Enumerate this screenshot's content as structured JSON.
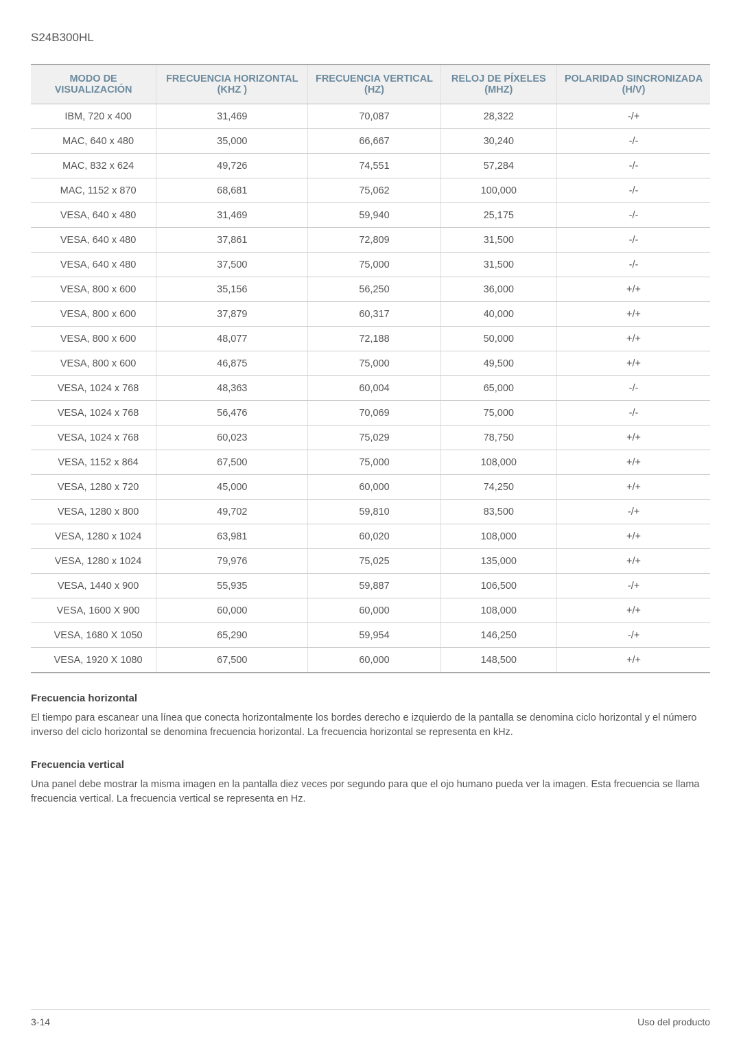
{
  "model": "S24B300HL",
  "table": {
    "headers": [
      "MODO DE VISUALIZACIÓN",
      "FRECUENCIA HORIZONTAL (KHZ )",
      "FRECUENCIA VERTICAL (HZ)",
      "RELOJ DE PÍXELES (MHZ)",
      "POLARIDAD SINCRONIZADA (H/V)"
    ],
    "header_color": "#6b8a9e",
    "header_bg": "#f0f0f0",
    "border_color": "#a8a8a8",
    "row_border_color": "#cccccc",
    "font_size": 14.5,
    "rows": [
      [
        "IBM, 720 x 400",
        "31,469",
        "70,087",
        "28,322",
        "-/+"
      ],
      [
        "MAC, 640 x 480",
        "35,000",
        "66,667",
        "30,240",
        "-/-"
      ],
      [
        "MAC, 832 x 624",
        "49,726",
        "74,551",
        "57,284",
        "-/-"
      ],
      [
        "MAC, 1152 x 870",
        "68,681",
        "75,062",
        "100,000",
        "-/-"
      ],
      [
        "VESA, 640 x 480",
        "31,469",
        "59,940",
        "25,175",
        "-/-"
      ],
      [
        "VESA, 640 x 480",
        "37,861",
        "72,809",
        "31,500",
        "-/-"
      ],
      [
        "VESA, 640 x 480",
        "37,500",
        "75,000",
        "31,500",
        "-/-"
      ],
      [
        "VESA, 800 x 600",
        "35,156",
        "56,250",
        "36,000",
        "+/+"
      ],
      [
        "VESA, 800 x 600",
        "37,879",
        "60,317",
        "40,000",
        "+/+"
      ],
      [
        "VESA, 800 x 600",
        "48,077",
        "72,188",
        "50,000",
        "+/+"
      ],
      [
        "VESA, 800 x 600",
        "46,875",
        "75,000",
        "49,500",
        "+/+"
      ],
      [
        "VESA, 1024 x 768",
        "48,363",
        "60,004",
        "65,000",
        "-/-"
      ],
      [
        "VESA, 1024 x 768",
        "56,476",
        "70,069",
        "75,000",
        "-/-"
      ],
      [
        "VESA, 1024 x 768",
        "60,023",
        "75,029",
        "78,750",
        "+/+"
      ],
      [
        "VESA, 1152 x 864",
        "67,500",
        "75,000",
        "108,000",
        "+/+"
      ],
      [
        "VESA, 1280 x 720",
        "45,000",
        "60,000",
        "74,250",
        "+/+"
      ],
      [
        "VESA, 1280 x 800",
        "49,702",
        "59,810",
        "83,500",
        "-/+"
      ],
      [
        "VESA, 1280 x 1024",
        "63,981",
        "60,020",
        "108,000",
        "+/+"
      ],
      [
        "VESA, 1280 x 1024",
        "79,976",
        "75,025",
        "135,000",
        "+/+"
      ],
      [
        "VESA, 1440 x 900",
        "55,935",
        "59,887",
        "106,500",
        "-/+"
      ],
      [
        "VESA, 1600 X 900",
        "60,000",
        "60,000",
        "108,000",
        "+/+"
      ],
      [
        "VESA, 1680 X 1050",
        "65,290",
        "59,954",
        "146,250",
        "-/+"
      ],
      [
        "VESA, 1920 X 1080",
        "67,500",
        "60,000",
        "148,500",
        "+/+"
      ]
    ]
  },
  "sections": {
    "freq_h_title": "Frecuencia horizontal",
    "freq_h_body": "El tiempo para escanear una línea que conecta horizontalmente los bordes derecho e izquierdo de la pantalla se denomina ciclo horizontal y el número inverso del ciclo horizontal se denomina frecuencia horizontal. La frecuencia horizontal se representa en kHz.",
    "freq_v_title": "Frecuencia vertical",
    "freq_v_body": "Una panel debe mostrar la misma imagen en la pantalla diez veces por segundo para que el ojo humano pueda ver la imagen. Esta frecuencia se llama frecuencia vertical. La frecuencia vertical se representa en Hz."
  },
  "footer": {
    "page": "3-14",
    "section": "Uso del producto"
  }
}
